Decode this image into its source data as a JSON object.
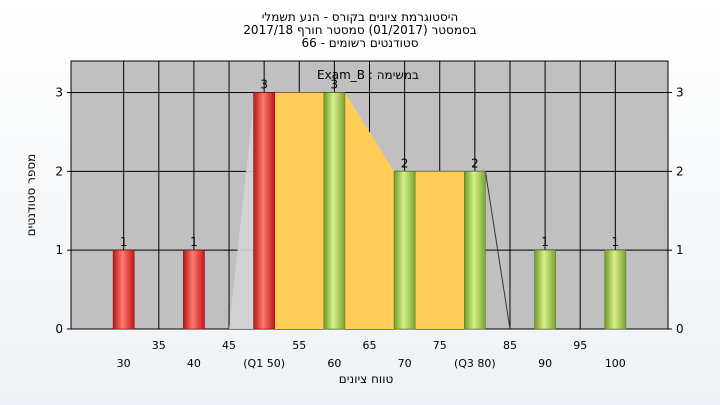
{
  "title": {
    "line1": "היסטוגרמת ציונים בקורס - הנע תשמלי",
    "line2": "בסמסטר  (01/2017)  סמסטר חורף  2017/18",
    "line3": "סטודנטים רשומים - 66"
  },
  "colors": {
    "plot_bg": "#c0c0c0",
    "area": "#ffcc55",
    "bar_red": "#e0302c",
    "bar_green": "#9ac64a"
  },
  "chart_data": {
    "type": "bar",
    "title": "היסטוגרמת ציונים בקורס - הנע תשמלי",
    "subtitle": "Exam_B : במשימה",
    "xlabel": "טווח ציונים",
    "ylabel": "מספר סטודנטים",
    "ylim": [
      0,
      3.4
    ],
    "xlim": [
      22.5,
      107.5
    ],
    "yticks": [
      0,
      1,
      2,
      3
    ],
    "x_tick_values": [
      30,
      35,
      40,
      45,
      50,
      55,
      60,
      65,
      70,
      75,
      80,
      85,
      90,
      95,
      100
    ],
    "x_tick_labels": [
      "30",
      "35",
      "40",
      "45",
      "(Q1 50)",
      "55",
      "60",
      "65",
      "70",
      "75",
      "(Q3 80)",
      "85",
      "90",
      "95",
      "100"
    ],
    "bars": [
      {
        "x": 30,
        "value": 1,
        "color": "red"
      },
      {
        "x": 40,
        "value": 1,
        "color": "red"
      },
      {
        "x": 50,
        "value": 3,
        "color": "red"
      },
      {
        "x": 60,
        "value": 3,
        "color": "green"
      },
      {
        "x": 70,
        "value": 2,
        "color": "green"
      },
      {
        "x": 80,
        "value": 2,
        "color": "green"
      },
      {
        "x": 90,
        "value": 1,
        "color": "green"
      },
      {
        "x": 100,
        "value": 1,
        "color": "green"
      }
    ],
    "grid": true,
    "legend": "none"
  }
}
